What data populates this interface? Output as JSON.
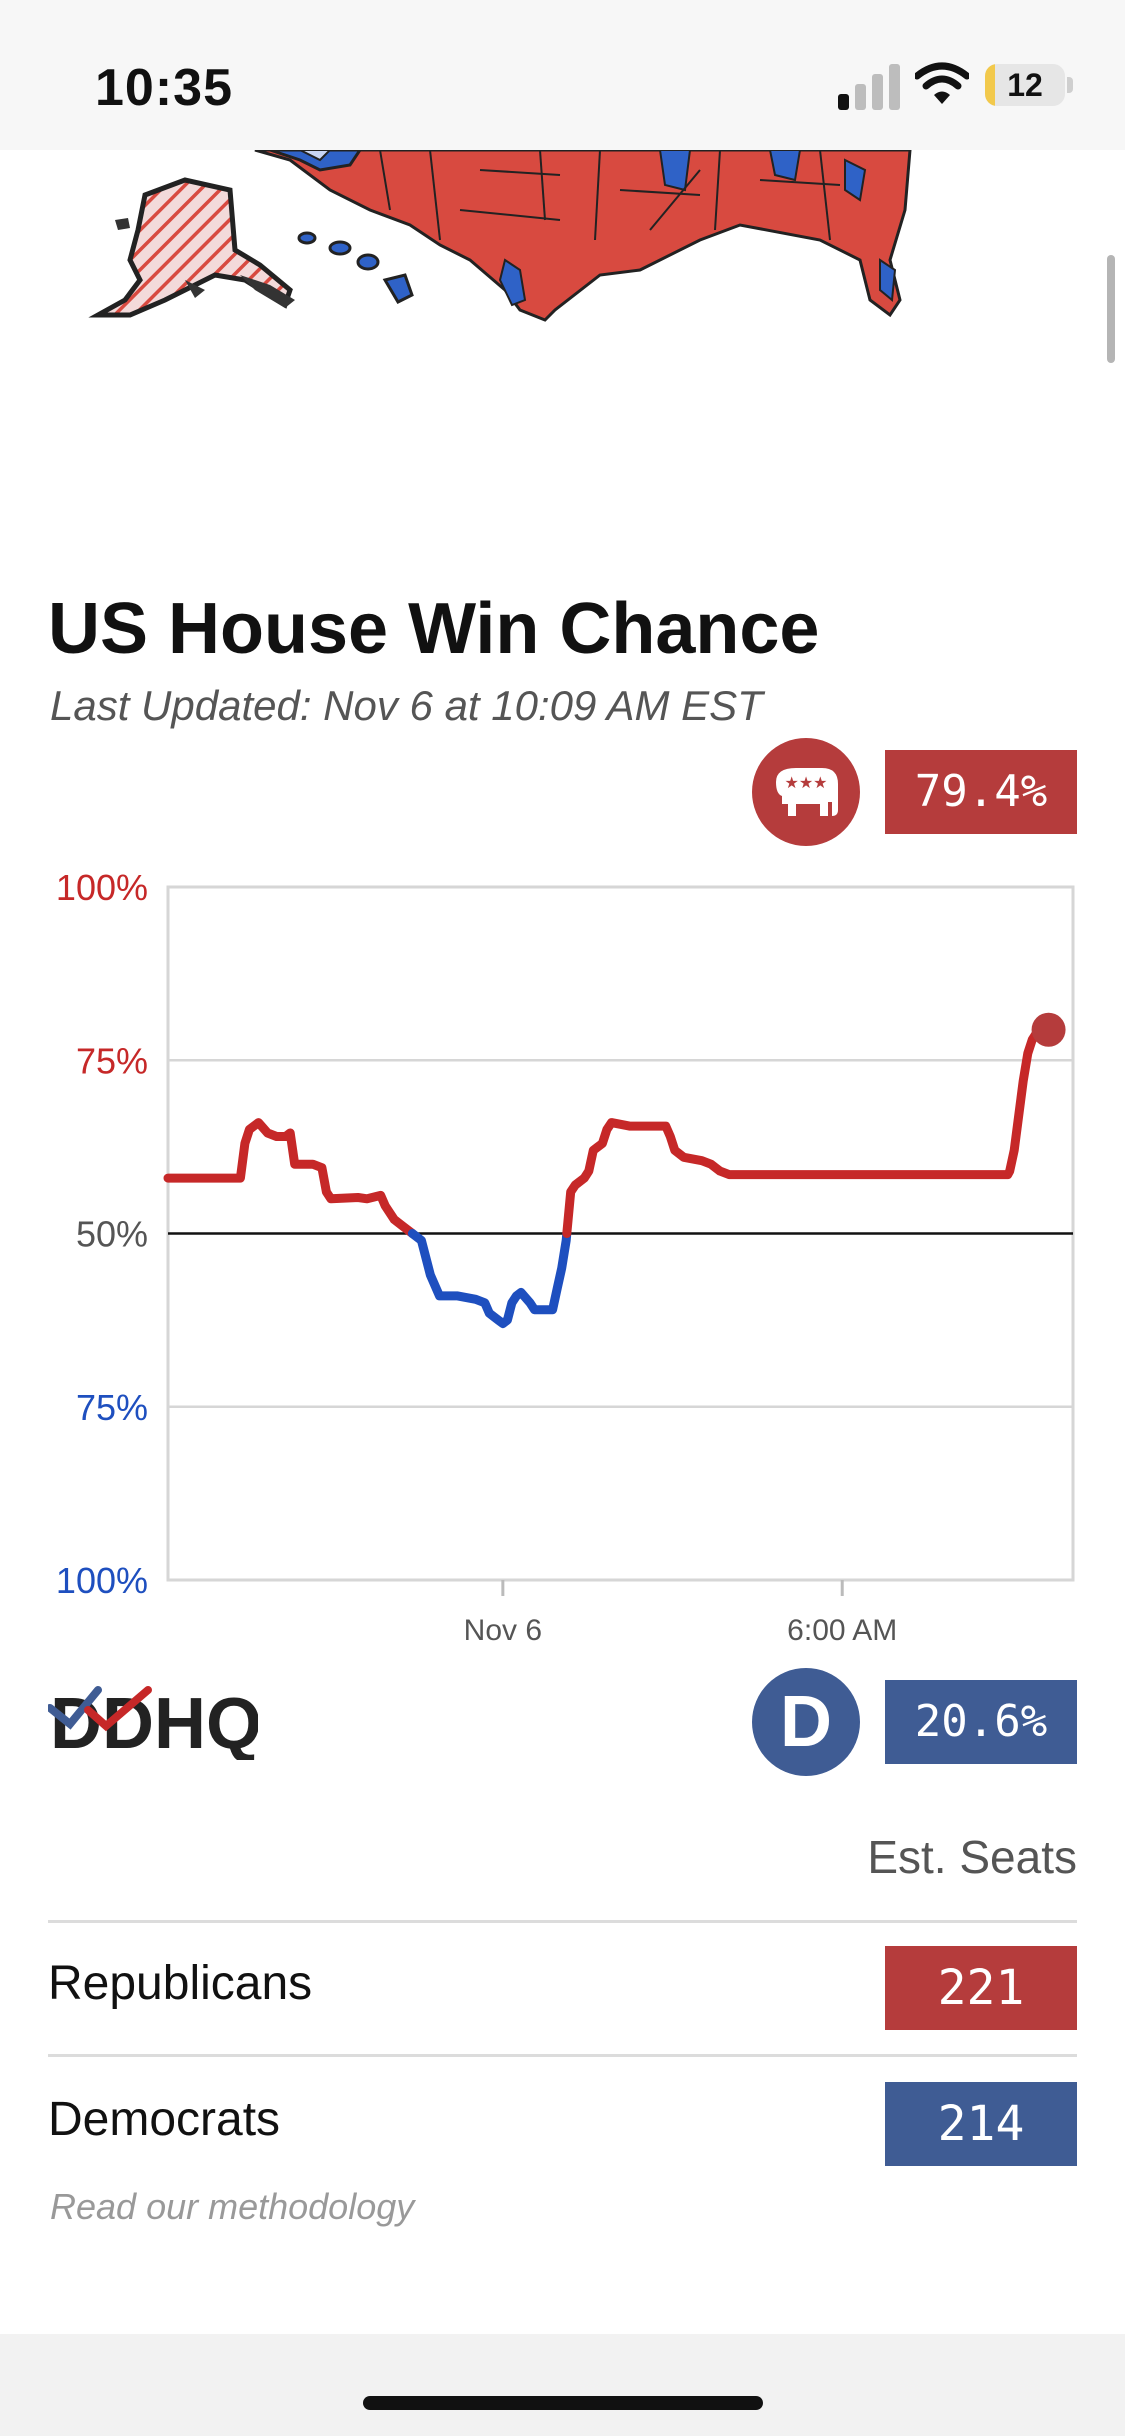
{
  "status_bar": {
    "time": "10:35",
    "battery": "12",
    "battery_level": 0.12
  },
  "header": {
    "title": "US House Win Chance",
    "last_updated": "Last Updated: Nov 6 at 10:09 AM EST"
  },
  "rep": {
    "percent": "79.4%",
    "icon": "republican-elephant-icon",
    "color": "#b53c3c"
  },
  "dem": {
    "percent": "20.6%",
    "letter": "D",
    "icon": "democrat-d-icon",
    "color": "#3f5c94"
  },
  "logo_text": "DDHQ",
  "chart_data": {
    "type": "line",
    "y_tick_labels": [
      "100%",
      "75%",
      "50%",
      "75%",
      "100%"
    ],
    "x_tick_labels": [
      "Nov 6",
      "6:00 AM"
    ],
    "x_range": [
      0,
      100
    ],
    "y_range": [
      -50,
      50
    ],
    "midline": 0,
    "series": [
      {
        "points": [
          [
            0,
            8
          ],
          [
            8,
            8
          ],
          [
            8.5,
            13
          ],
          [
            9,
            15
          ],
          [
            10,
            16
          ],
          [
            11,
            14.5
          ],
          [
            12,
            14
          ],
          [
            13,
            14
          ],
          [
            13.5,
            14.5
          ],
          [
            14,
            10
          ],
          [
            16,
            10
          ],
          [
            17,
            9.5
          ],
          [
            17.5,
            6
          ],
          [
            18,
            5
          ],
          [
            21,
            5.2
          ],
          [
            22,
            5
          ],
          [
            23.5,
            5.5
          ],
          [
            24,
            4
          ],
          [
            25,
            2
          ],
          [
            26,
            1
          ],
          [
            27,
            0
          ],
          [
            28,
            -1
          ],
          [
            29,
            -6
          ],
          [
            30,
            -9
          ],
          [
            32,
            -9
          ],
          [
            34,
            -9.5
          ],
          [
            35,
            -10
          ],
          [
            35.5,
            -11.5
          ],
          [
            36,
            -12
          ],
          [
            36.5,
            -12.5
          ],
          [
            37,
            -13
          ],
          [
            37.5,
            -12.5
          ],
          [
            38,
            -10
          ],
          [
            38.5,
            -9
          ],
          [
            39,
            -8.5
          ],
          [
            40,
            -10
          ],
          [
            40.5,
            -11
          ],
          [
            42,
            -11
          ],
          [
            42.5,
            -11
          ],
          [
            43,
            -8
          ],
          [
            43.5,
            -5
          ],
          [
            44,
            -1
          ],
          [
            44.5,
            6
          ],
          [
            45,
            7
          ],
          [
            46,
            8
          ],
          [
            46.5,
            9
          ],
          [
            47,
            12
          ],
          [
            48,
            13
          ],
          [
            48.5,
            15
          ],
          [
            49,
            16
          ],
          [
            51,
            15.5
          ],
          [
            55,
            15.5
          ],
          [
            55.5,
            14
          ],
          [
            56,
            12
          ],
          [
            57,
            11
          ],
          [
            59,
            10.5
          ],
          [
            60,
            10
          ],
          [
            60.5,
            9.5
          ],
          [
            61,
            9
          ],
          [
            62,
            8.5
          ],
          [
            70,
            8.5
          ],
          [
            80,
            8.5
          ],
          [
            92,
            8.5
          ],
          [
            92.8,
            8.5
          ],
          [
            93,
            9
          ],
          [
            93.5,
            12
          ],
          [
            94,
            17
          ],
          [
            94.5,
            22
          ],
          [
            95,
            26
          ],
          [
            95.5,
            28
          ],
          [
            96,
            29
          ],
          [
            96.5,
            29.5
          ],
          [
            97,
            29.8
          ],
          [
            97.3,
            29.4
          ]
        ]
      }
    ],
    "colors": {
      "rep": "#c62828",
      "dem": "#1e4fbf"
    }
  },
  "seats": {
    "header": "Est. Seats",
    "rows": [
      {
        "party": "Republicans",
        "value": "221"
      },
      {
        "party": "Democrats",
        "value": "214"
      }
    ]
  },
  "methodology_link": "Read our methodology"
}
